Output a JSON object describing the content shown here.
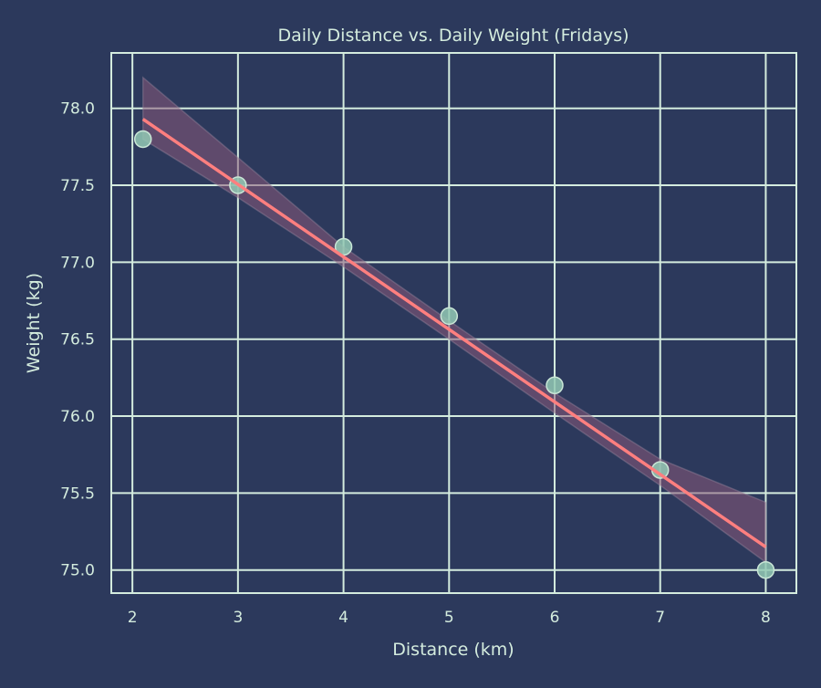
{
  "chart_data": {
    "type": "scatter",
    "title": "Daily Distance vs. Daily Weight (Fridays)",
    "xlabel": "Distance (km)",
    "ylabel": "Weight (kg)",
    "xlim": [
      1.8,
      8.29
    ],
    "ylim": [
      74.85,
      78.36
    ],
    "xticks": [
      2,
      3,
      4,
      5,
      6,
      7,
      8
    ],
    "yticks": [
      75.0,
      75.5,
      76.0,
      76.5,
      77.0,
      77.5,
      78.0
    ],
    "grid": true,
    "points": {
      "x": [
        2.1,
        3,
        4,
        5,
        6,
        7,
        8
      ],
      "y": [
        77.8,
        77.5,
        77.1,
        76.65,
        76.2,
        75.65,
        75.0
      ]
    },
    "regression": {
      "x": [
        2.1,
        8
      ],
      "y": [
        77.93,
        75.15
      ]
    },
    "confidence_band": {
      "x": [
        2.1,
        3,
        4,
        5,
        6,
        7,
        8
      ],
      "upper": [
        78.2,
        77.68,
        77.1,
        76.62,
        76.15,
        75.72,
        75.44
      ],
      "lower": [
        77.8,
        77.42,
        76.97,
        76.5,
        76.02,
        75.55,
        75.05
      ]
    },
    "colors": {
      "background": "#2c395c",
      "grid": "#d4ecde",
      "points": "#93c9b4",
      "line": "#ff7f7f",
      "band": "#8a5a7a"
    }
  }
}
